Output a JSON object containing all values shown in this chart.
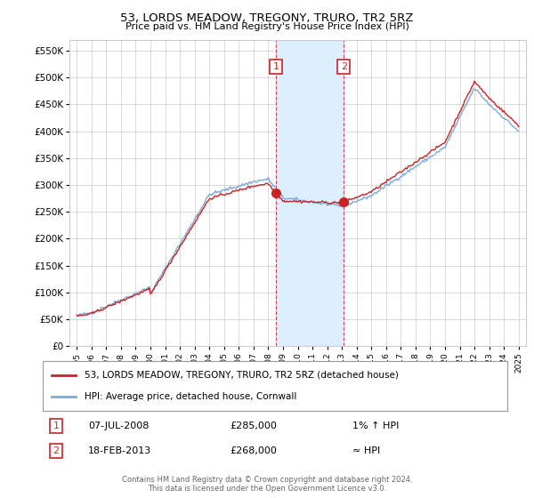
{
  "title": "53, LORDS MEADOW, TREGONY, TRURO, TR2 5RZ",
  "subtitle": "Price paid vs. HM Land Registry's House Price Index (HPI)",
  "legend_line1": "53, LORDS MEADOW, TREGONY, TRURO, TR2 5RZ (detached house)",
  "legend_line2": "HPI: Average price, detached house, Cornwall",
  "annotation1_date": "07-JUL-2008",
  "annotation1_price": "£285,000",
  "annotation1_hpi": "1% ↑ HPI",
  "annotation2_date": "18-FEB-2013",
  "annotation2_price": "£268,000",
  "annotation2_hpi": "≈ HPI",
  "footer": "Contains HM Land Registry data © Crown copyright and database right 2024.\nThis data is licensed under the Open Government Licence v3.0.",
  "ylim": [
    0,
    570000
  ],
  "yticks": [
    0,
    50000,
    100000,
    150000,
    200000,
    250000,
    300000,
    350000,
    400000,
    450000,
    500000,
    550000
  ],
  "ytick_labels": [
    "£0",
    "£50K",
    "£100K",
    "£150K",
    "£200K",
    "£250K",
    "£300K",
    "£350K",
    "£400K",
    "£450K",
    "£500K",
    "£550K"
  ],
  "sale1_x": 2008.52,
  "sale1_y": 285000,
  "sale2_x": 2013.13,
  "sale2_y": 268000,
  "shade_x1": 2008.52,
  "shade_x2": 2013.13,
  "hpi_color": "#7aaadd",
  "sale_color": "#cc2222",
  "shade_color": "#ddeeff",
  "grid_color": "#cccccc",
  "bg_color": "#ffffff",
  "box_color": "#cc2222",
  "xlim_left": 1994.5,
  "xlim_right": 2025.5
}
